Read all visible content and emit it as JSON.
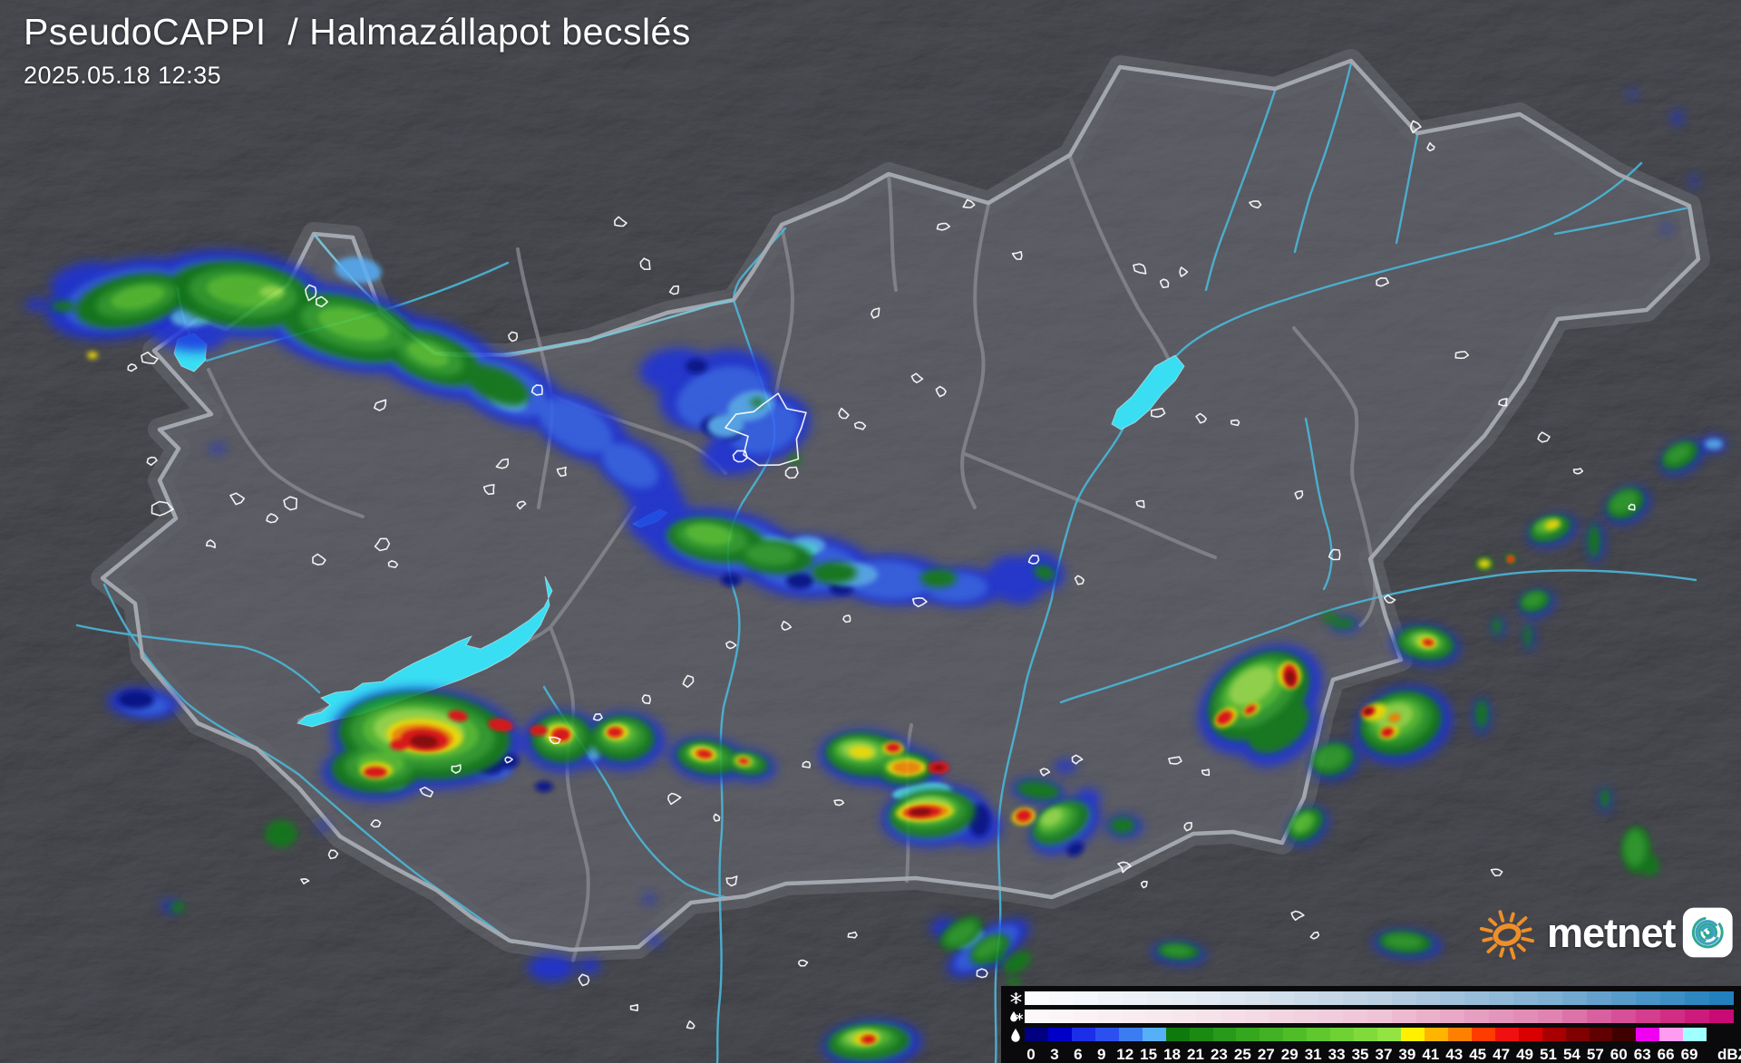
{
  "header": {
    "title": "PseudoCAPPI  / Halmazállapot becslés",
    "timestamp": "2025.05.18 12:35"
  },
  "branding": {
    "wordmark": "metnet",
    "sun_color": "#EE8F2A",
    "spiral_teal": "#2EA893",
    "spiral_blue": "#3D9FC4"
  },
  "legend": {
    "unit_label": "dBZ",
    "rows": [
      {
        "icon": "snowflake-icon",
        "type": "snow"
      },
      {
        "icon": "sleet-icon",
        "type": "sleet"
      },
      {
        "icon": "raindrop-icon",
        "type": "rain"
      }
    ],
    "ticks": [
      "0",
      "3",
      "6",
      "9",
      "12",
      "15",
      "18",
      "21",
      "23",
      "25",
      "27",
      "29",
      "31",
      "33",
      "35",
      "37",
      "39",
      "41",
      "43",
      "45",
      "47",
      "49",
      "51",
      "54",
      "57",
      "60",
      "63",
      "66",
      "69"
    ],
    "rain_colors": [
      "#000080",
      "#0000C8",
      "#1C2EE8",
      "#2C50F0",
      "#3C7CF2",
      "#55B0F8",
      "#0E7A0E",
      "#1B8A12",
      "#28991A",
      "#35A71E",
      "#42B224",
      "#50BD28",
      "#60C82E",
      "#70D134",
      "#81DA3B",
      "#93E342",
      "#FFF000",
      "#FFB400",
      "#FF8000",
      "#FF3C00",
      "#F01010",
      "#D80000",
      "#A80000",
      "#800000",
      "#600000",
      "#3F0000",
      "#F000F0",
      "#FF9CF0",
      "#A0FFFF"
    ],
    "snow_gradient": [
      "#FBFCFE",
      "#E2E9F2",
      "#BACFE2",
      "#7FB0D4",
      "#2180BD"
    ],
    "sleet_gradient": [
      "#FCF8FA",
      "#F6E3EA",
      "#EFC3D6",
      "#E083B1",
      "#C90A74"
    ]
  }
}
